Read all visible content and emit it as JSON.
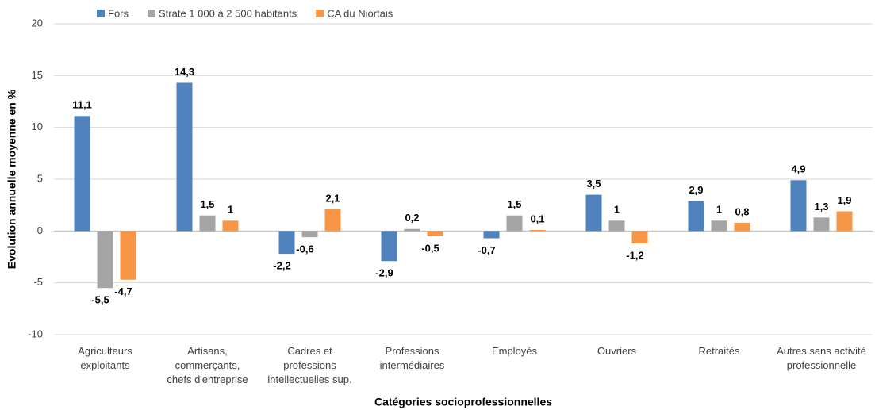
{
  "chart_data": {
    "type": "bar",
    "x_label": "Catégories socioprofessionnelles",
    "y_label": "Evolution annuelle moyenne en %",
    "categories": [
      "Agriculteurs\nexploitants",
      "Artisans,\ncommerçants,\nchefs d'entreprise",
      "Cadres et\nprofessions\nintellectuelles sup.",
      "Professions\nintermédiaires",
      "Employés",
      "Ouvriers",
      "Retraités",
      "Autres sans activité\nprofessionnelle"
    ],
    "series": [
      {
        "name": "Fors",
        "color": "#4f81bd",
        "values": [
          11.1,
          14.3,
          -2.2,
          -2.9,
          -0.7,
          3.5,
          2.9,
          4.9
        ],
        "value_labels": [
          "11,1",
          "14,3",
          "-2,2",
          "-2,9",
          "-0,7",
          "3,5",
          "2,9",
          "4,9"
        ]
      },
      {
        "name": "Strate 1 000 à 2 500 habitants",
        "color": "#a5a5a5",
        "values": [
          -5.5,
          1.5,
          -0.6,
          0.2,
          1.5,
          1,
          1,
          1.3
        ],
        "value_labels": [
          "-5,5",
          "1,5",
          "-0,6",
          "0,2",
          "1,5",
          "1",
          "1",
          "1,3"
        ]
      },
      {
        "name": "CA du Niortais",
        "color": "#f79646",
        "values": [
          -4.7,
          1,
          2.1,
          -0.5,
          0.1,
          -1.2,
          0.8,
          1.9
        ],
        "value_labels": [
          "-4,7",
          "1",
          "2,1",
          "-0,5",
          "0,1",
          "-1,2",
          "0,8",
          "1,9"
        ]
      }
    ],
    "ylim": [
      -10,
      20
    ],
    "yticks": [
      -10,
      -5,
      0,
      5,
      10,
      15,
      20
    ],
    "grid": true,
    "legend": "top"
  }
}
